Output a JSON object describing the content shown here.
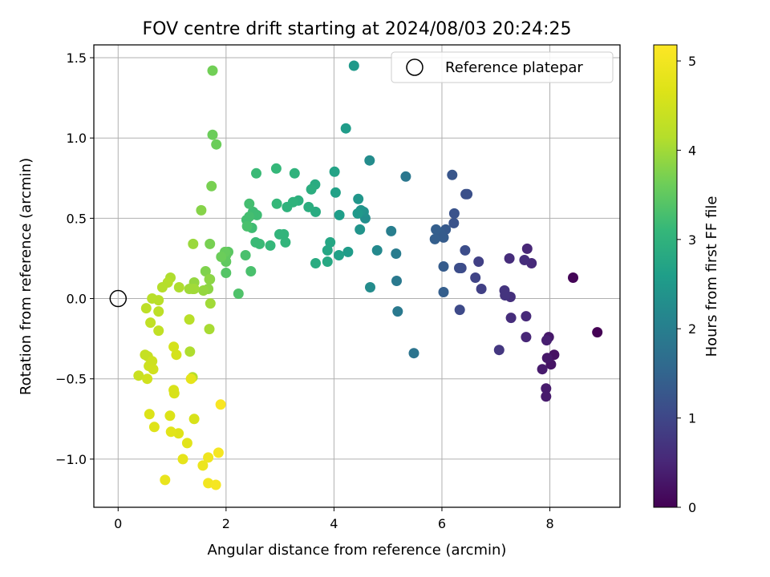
{
  "chart_data": {
    "type": "scatter",
    "title": "FOV centre drift starting at 2024/08/03 20:24:25",
    "xlabel": "Angular distance from reference (arcmin)",
    "ylabel": "Rotation from reference (arcmin)",
    "xlim": [
      -0.45,
      9.3
    ],
    "ylim": [
      -1.3,
      1.58
    ],
    "xticks": [
      0,
      2,
      4,
      6,
      8
    ],
    "xtick_labels": [
      "0",
      "2",
      "4",
      "6",
      "8"
    ],
    "yticks": [
      -1.0,
      -0.5,
      0.0,
      0.5,
      1.0,
      1.5
    ],
    "ytick_labels": [
      "−1.0",
      "−0.5",
      "0.0",
      "0.5",
      "1.0",
      "1.5"
    ],
    "grid": true,
    "colormap": "viridis",
    "colorbar": {
      "label": "Hours from first FF file",
      "range": [
        0,
        5.18
      ],
      "ticks": [
        0,
        1,
        2,
        3,
        4,
        5
      ],
      "tick_labels": [
        "0",
        "1",
        "2",
        "3",
        "4",
        "5"
      ]
    },
    "legend": {
      "position": "top-right",
      "entries": [
        {
          "label": "Reference platepar",
          "marker": "hollow-circle",
          "color": "#000000"
        }
      ]
    },
    "reference_point": {
      "x": 0.0,
      "y": 0.0
    },
    "series": [
      {
        "columns": [
          "x",
          "y",
          "hours"
        ],
        "points": [
          [
            8.88,
            -0.21,
            0.0
          ],
          [
            8.43,
            0.13,
            0.05
          ],
          [
            8.08,
            -0.35,
            0.2
          ],
          [
            8.02,
            -0.41,
            0.25
          ],
          [
            7.98,
            -0.24,
            0.3
          ],
          [
            7.95,
            -0.37,
            0.3
          ],
          [
            7.93,
            -0.56,
            0.35
          ],
          [
            7.93,
            -0.61,
            0.35
          ],
          [
            7.94,
            -0.26,
            0.4
          ],
          [
            7.86,
            -0.44,
            0.35
          ],
          [
            7.56,
            -0.24,
            0.5
          ],
          [
            7.56,
            -0.11,
            0.55
          ],
          [
            7.58,
            0.31,
            0.5
          ],
          [
            7.66,
            0.22,
            0.55
          ],
          [
            7.53,
            0.24,
            0.6
          ],
          [
            7.28,
            -0.12,
            0.6
          ],
          [
            7.25,
            0.25,
            0.6
          ],
          [
            7.27,
            0.01,
            0.65
          ],
          [
            7.17,
            0.02,
            0.7
          ],
          [
            7.16,
            0.05,
            0.7
          ],
          [
            7.06,
            -0.32,
            0.75
          ],
          [
            6.73,
            0.06,
            0.9
          ],
          [
            6.68,
            0.23,
            0.9
          ],
          [
            6.62,
            0.13,
            0.95
          ],
          [
            6.36,
            0.19,
            1.05
          ],
          [
            6.33,
            -0.07,
            1.05
          ],
          [
            6.32,
            0.19,
            1.1
          ],
          [
            6.43,
            0.3,
            1.1
          ],
          [
            6.47,
            0.65,
            1.15
          ],
          [
            6.44,
            0.65,
            1.15
          ],
          [
            6.23,
            0.53,
            1.2
          ],
          [
            6.22,
            0.47,
            1.2
          ],
          [
            6.19,
            0.77,
            1.25
          ],
          [
            6.07,
            0.43,
            1.3
          ],
          [
            6.03,
            0.38,
            1.35
          ],
          [
            5.97,
            0.41,
            1.35
          ],
          [
            5.89,
            0.43,
            1.4
          ],
          [
            5.87,
            0.37,
            1.4
          ],
          [
            6.03,
            0.2,
            1.35
          ],
          [
            6.03,
            0.04,
            1.4
          ],
          [
            5.48,
            -0.34,
            1.8
          ],
          [
            5.33,
            0.76,
            1.85
          ],
          [
            5.18,
            -0.08,
            1.9
          ],
          [
            5.16,
            0.11,
            1.9
          ],
          [
            5.15,
            0.28,
            1.95
          ],
          [
            5.06,
            0.42,
            2.0
          ],
          [
            4.8,
            0.3,
            2.2
          ],
          [
            4.67,
            0.07,
            2.25
          ],
          [
            4.66,
            0.86,
            2.25
          ],
          [
            4.58,
            0.5,
            2.3
          ],
          [
            4.55,
            0.54,
            2.35
          ],
          [
            4.5,
            0.55,
            2.4
          ],
          [
            4.48,
            0.43,
            2.4
          ],
          [
            4.45,
            0.62,
            2.45
          ],
          [
            4.44,
            0.53,
            2.5
          ],
          [
            4.37,
            1.45,
            2.5
          ],
          [
            4.26,
            0.29,
            2.55
          ],
          [
            4.22,
            1.06,
            2.55
          ],
          [
            4.1,
            0.52,
            2.6
          ],
          [
            4.09,
            0.27,
            2.65
          ],
          [
            4.03,
            0.66,
            2.65
          ],
          [
            4.01,
            0.79,
            2.7
          ],
          [
            3.93,
            0.35,
            2.75
          ],
          [
            3.88,
            0.3,
            2.75
          ],
          [
            3.88,
            0.23,
            2.8
          ],
          [
            3.66,
            0.22,
            2.85
          ],
          [
            3.66,
            0.54,
            2.85
          ],
          [
            3.65,
            0.71,
            2.85
          ],
          [
            3.58,
            0.68,
            2.9
          ],
          [
            3.53,
            0.57,
            2.9
          ],
          [
            3.34,
            0.61,
            2.95
          ],
          [
            3.27,
            0.78,
            3.0
          ],
          [
            3.24,
            0.6,
            3.0
          ],
          [
            3.13,
            0.57,
            3.0
          ],
          [
            3.1,
            0.35,
            3.05
          ],
          [
            3.07,
            0.4,
            3.05
          ],
          [
            2.99,
            0.4,
            3.05
          ],
          [
            2.94,
            0.59,
            3.1
          ],
          [
            2.93,
            0.81,
            3.1
          ],
          [
            2.82,
            0.33,
            3.1
          ],
          [
            2.62,
            0.34,
            3.15
          ],
          [
            2.55,
            0.35,
            3.15
          ],
          [
            2.56,
            0.78,
            3.15
          ],
          [
            2.57,
            0.52,
            3.2
          ],
          [
            2.5,
            0.54,
            3.2
          ],
          [
            2.48,
            0.44,
            3.2
          ],
          [
            2.43,
            0.59,
            3.25
          ],
          [
            2.43,
            0.51,
            3.25
          ],
          [
            2.38,
            0.49,
            3.25
          ],
          [
            2.39,
            0.45,
            3.3
          ],
          [
            2.36,
            0.27,
            3.3
          ],
          [
            2.46,
            0.17,
            3.3
          ],
          [
            2.23,
            0.03,
            3.35
          ],
          [
            2.0,
            0.16,
            3.4
          ],
          [
            2.04,
            0.29,
            3.45
          ],
          [
            2.0,
            0.27,
            3.5
          ],
          [
            2.0,
            0.23,
            3.5
          ],
          [
            1.98,
            0.29,
            3.55
          ],
          [
            1.91,
            0.26,
            3.6
          ],
          [
            1.82,
            0.96,
            3.6
          ],
          [
            1.75,
            1.02,
            3.6
          ],
          [
            1.75,
            1.42,
            3.65
          ],
          [
            1.73,
            0.7,
            3.7
          ],
          [
            1.7,
            0.34,
            3.7
          ],
          [
            1.7,
            0.12,
            3.75
          ],
          [
            1.62,
            0.17,
            3.75
          ],
          [
            1.54,
            0.55,
            3.8
          ],
          [
            1.69,
            0.12,
            3.85
          ],
          [
            1.67,
            0.06,
            3.85
          ],
          [
            1.58,
            0.05,
            3.9
          ],
          [
            1.41,
            0.1,
            3.9
          ],
          [
            1.39,
            0.34,
            3.95
          ],
          [
            1.38,
            0.06,
            3.95
          ],
          [
            1.32,
            0.06,
            4.0
          ],
          [
            1.41,
            0.06,
            4.0
          ],
          [
            1.71,
            -0.03,
            4.0
          ],
          [
            1.69,
            -0.19,
            4.05
          ],
          [
            1.33,
            -0.33,
            4.1
          ],
          [
            1.38,
            -0.49,
            4.15
          ],
          [
            1.32,
            -0.13,
            4.2
          ],
          [
            1.13,
            0.07,
            4.1
          ],
          [
            0.97,
            0.13,
            4.1
          ],
          [
            0.92,
            0.1,
            4.15
          ],
          [
            0.82,
            0.07,
            4.15
          ],
          [
            0.75,
            -0.01,
            4.2
          ],
          [
            0.63,
            0.0,
            4.2
          ],
          [
            0.75,
            -0.08,
            4.25
          ],
          [
            0.52,
            -0.06,
            4.25
          ],
          [
            0.6,
            -0.15,
            4.3
          ],
          [
            0.75,
            -0.2,
            4.3
          ],
          [
            0.5,
            -0.35,
            4.35
          ],
          [
            0.55,
            -0.36,
            4.35
          ],
          [
            0.38,
            -0.48,
            4.4
          ],
          [
            0.6,
            -0.41,
            4.4
          ],
          [
            0.63,
            -0.39,
            4.45
          ],
          [
            0.57,
            -0.42,
            4.45
          ],
          [
            0.65,
            -0.44,
            4.5
          ],
          [
            0.54,
            -0.5,
            4.5
          ],
          [
            1.03,
            -0.3,
            4.55
          ],
          [
            1.08,
            -0.35,
            4.55
          ],
          [
            1.03,
            -0.57,
            4.6
          ],
          [
            1.04,
            -0.59,
            4.6
          ],
          [
            1.41,
            -0.75,
            4.6
          ],
          [
            0.96,
            -0.73,
            4.65
          ],
          [
            0.58,
            -0.72,
            4.65
          ],
          [
            0.67,
            -0.8,
            4.7
          ],
          [
            1.12,
            -0.84,
            4.7
          ],
          [
            0.98,
            -0.83,
            4.75
          ],
          [
            1.28,
            -0.9,
            4.75
          ],
          [
            1.2,
            -1.0,
            4.8
          ],
          [
            1.35,
            -0.5,
            4.8
          ],
          [
            0.87,
            -1.13,
            4.85
          ],
          [
            1.57,
            -1.04,
            4.9
          ],
          [
            1.67,
            -0.99,
            4.95
          ],
          [
            1.67,
            -1.15,
            5.0
          ],
          [
            1.81,
            -1.16,
            5.05
          ],
          [
            1.86,
            -0.96,
            5.05
          ],
          [
            1.9,
            -0.66,
            5.1
          ]
        ]
      }
    ]
  }
}
